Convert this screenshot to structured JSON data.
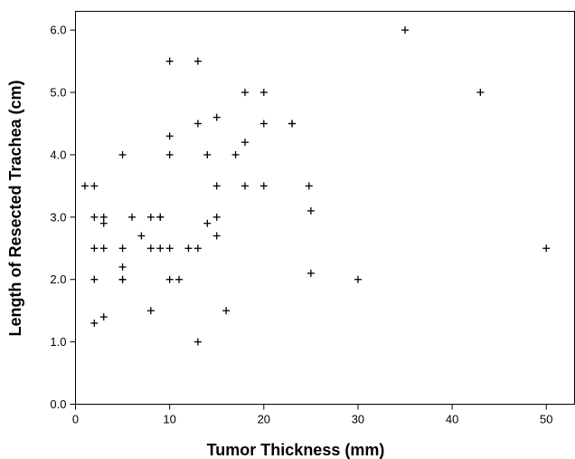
{
  "chart_data": {
    "type": "scatter",
    "title": "",
    "xlabel": "Tumor Thickness (mm)",
    "ylabel": "Length of Resected Trachea (cm)",
    "xlim": [
      0,
      53
    ],
    "ylim": [
      0,
      6.3
    ],
    "x_ticks": [
      0,
      10,
      20,
      30,
      40,
      50
    ],
    "x_tick_labels": [
      "0",
      "10",
      "20",
      "30",
      "40",
      "50"
    ],
    "y_ticks": [
      0,
      1,
      2,
      3,
      4,
      5,
      6
    ],
    "y_tick_labels": [
      "0.0",
      "1.0",
      "2.0",
      "3.0",
      "4.0",
      "5.0",
      "6.0"
    ],
    "grid": false,
    "marker": "+",
    "color": "#000000",
    "points": [
      {
        "x": 1,
        "y": 3.5
      },
      {
        "x": 2,
        "y": 3.5
      },
      {
        "x": 2,
        "y": 3.0
      },
      {
        "x": 2,
        "y": 2.5
      },
      {
        "x": 2,
        "y": 2.0
      },
      {
        "x": 2,
        "y": 1.3
      },
      {
        "x": 3,
        "y": 3.0
      },
      {
        "x": 3,
        "y": 2.9
      },
      {
        "x": 3,
        "y": 2.5
      },
      {
        "x": 3,
        "y": 1.4
      },
      {
        "x": 5,
        "y": 4.0
      },
      {
        "x": 5,
        "y": 2.5
      },
      {
        "x": 5,
        "y": 2.2
      },
      {
        "x": 5,
        "y": 2.0
      },
      {
        "x": 5,
        "y": 2.0
      },
      {
        "x": 6,
        "y": 3.0
      },
      {
        "x": 7,
        "y": 2.7
      },
      {
        "x": 8,
        "y": 3.0
      },
      {
        "x": 8,
        "y": 2.5
      },
      {
        "x": 8,
        "y": 1.5
      },
      {
        "x": 9,
        "y": 3.0
      },
      {
        "x": 9,
        "y": 3.0
      },
      {
        "x": 9,
        "y": 2.5
      },
      {
        "x": 10,
        "y": 5.5
      },
      {
        "x": 10,
        "y": 4.3
      },
      {
        "x": 10,
        "y": 4.0
      },
      {
        "x": 10,
        "y": 2.5
      },
      {
        "x": 10,
        "y": 2.0
      },
      {
        "x": 11,
        "y": 2.0
      },
      {
        "x": 12,
        "y": 2.5
      },
      {
        "x": 13,
        "y": 5.5
      },
      {
        "x": 13,
        "y": 4.5
      },
      {
        "x": 13,
        "y": 2.5
      },
      {
        "x": 13,
        "y": 1.0
      },
      {
        "x": 14,
        "y": 4.0
      },
      {
        "x": 14,
        "y": 2.9
      },
      {
        "x": 15,
        "y": 4.6
      },
      {
        "x": 15,
        "y": 3.5
      },
      {
        "x": 15,
        "y": 3.0
      },
      {
        "x": 15,
        "y": 2.7
      },
      {
        "x": 16,
        "y": 1.5
      },
      {
        "x": 17,
        "y": 4.0
      },
      {
        "x": 18,
        "y": 5.0
      },
      {
        "x": 18,
        "y": 4.2
      },
      {
        "x": 18,
        "y": 3.5
      },
      {
        "x": 20,
        "y": 5.0
      },
      {
        "x": 20,
        "y": 4.5
      },
      {
        "x": 20,
        "y": 3.5
      },
      {
        "x": 23,
        "y": 4.5
      },
      {
        "x": 23,
        "y": 4.5
      },
      {
        "x": 24.8,
        "y": 3.5
      },
      {
        "x": 25,
        "y": 3.1
      },
      {
        "x": 25,
        "y": 2.1
      },
      {
        "x": 30,
        "y": 2.0
      },
      {
        "x": 35,
        "y": 6.0
      },
      {
        "x": 43,
        "y": 5.0
      },
      {
        "x": 50,
        "y": 2.5
      }
    ]
  }
}
